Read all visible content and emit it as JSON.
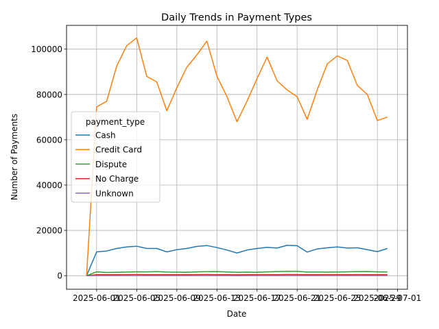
{
  "chart_data": {
    "type": "line",
    "title": "Daily Trends in Payment Types",
    "xlabel": "Date",
    "ylabel": "Number of Payments",
    "x_range": [
      "2025-05-29",
      "2025-07-02"
    ],
    "ylim": [
      -6000,
      110500
    ],
    "grid": true,
    "x_ticks": [
      "2025-06-01",
      "2025-06-05",
      "2025-06-09",
      "2025-06-13",
      "2025-06-17",
      "2025-06-21",
      "2025-06-25",
      "2025-06-29",
      "2025-07-01"
    ],
    "y_ticks": [
      0,
      20000,
      40000,
      60000,
      80000,
      100000
    ],
    "legend": {
      "title": "payment_type",
      "placement": "center-left"
    },
    "dates": [
      "2025-05-31",
      "2025-06-01",
      "2025-06-02",
      "2025-06-03",
      "2025-06-04",
      "2025-06-05",
      "2025-06-06",
      "2025-06-07",
      "2025-06-08",
      "2025-06-09",
      "2025-06-10",
      "2025-06-11",
      "2025-06-12",
      "2025-06-13",
      "2025-06-14",
      "2025-06-15",
      "2025-06-16",
      "2025-06-17",
      "2025-06-18",
      "2025-06-19",
      "2025-06-20",
      "2025-06-21",
      "2025-06-22",
      "2025-06-23",
      "2025-06-24",
      "2025-06-25",
      "2025-06-26",
      "2025-06-27",
      "2025-06-28",
      "2025-06-29",
      "2025-06-30"
    ],
    "series": [
      {
        "name": "Cash",
        "color": "#1f77b4",
        "values": [
          0,
          10500,
          10900,
          12000,
          12700,
          13000,
          12000,
          12000,
          10500,
          11500,
          12000,
          12900,
          13300,
          12400,
          11300,
          10000,
          11300,
          12000,
          12500,
          12200,
          13400,
          13200,
          10400,
          11800,
          12300,
          12700,
          12200,
          12300,
          11500,
          10600,
          12000
        ]
      },
      {
        "name": "Credit Card",
        "color": "#ff7f0e",
        "values": [
          0,
          74500,
          77000,
          92500,
          101500,
          105000,
          88000,
          85500,
          72800,
          83000,
          92000,
          97500,
          103500,
          88000,
          79000,
          68000,
          77000,
          87000,
          96500,
          86000,
          82000,
          79000,
          69000,
          82000,
          93500,
          97000,
          95000,
          84000,
          80000,
          68500,
          70000
        ]
      },
      {
        "name": "Dispute",
        "color": "#2ca02c",
        "values": [
          0,
          1700,
          1400,
          1500,
          1600,
          1700,
          1700,
          1800,
          1600,
          1550,
          1500,
          1700,
          1750,
          1800,
          1650,
          1500,
          1550,
          1500,
          1700,
          1800,
          1900,
          1900,
          1600,
          1600,
          1550,
          1600,
          1700,
          1800,
          1850,
          1700,
          1600
        ]
      },
      {
        "name": "No Charge",
        "color": "#d62728",
        "values": [
          0,
          450,
          420,
          450,
          480,
          500,
          450,
          440,
          400,
          420,
          450,
          480,
          500,
          450,
          420,
          380,
          420,
          450,
          480,
          460,
          500,
          490,
          400,
          440,
          470,
          490,
          460,
          470,
          440,
          400,
          430
        ]
      },
      {
        "name": "Unknown",
        "color": "#9467bd",
        "values": [
          0,
          40,
          40,
          45,
          45,
          50,
          45,
          45,
          40,
          40,
          45,
          45,
          50,
          45,
          40,
          35,
          40,
          45,
          45,
          45,
          50,
          50,
          40,
          45,
          45,
          50,
          45,
          45,
          45,
          40,
          40
        ]
      }
    ]
  }
}
